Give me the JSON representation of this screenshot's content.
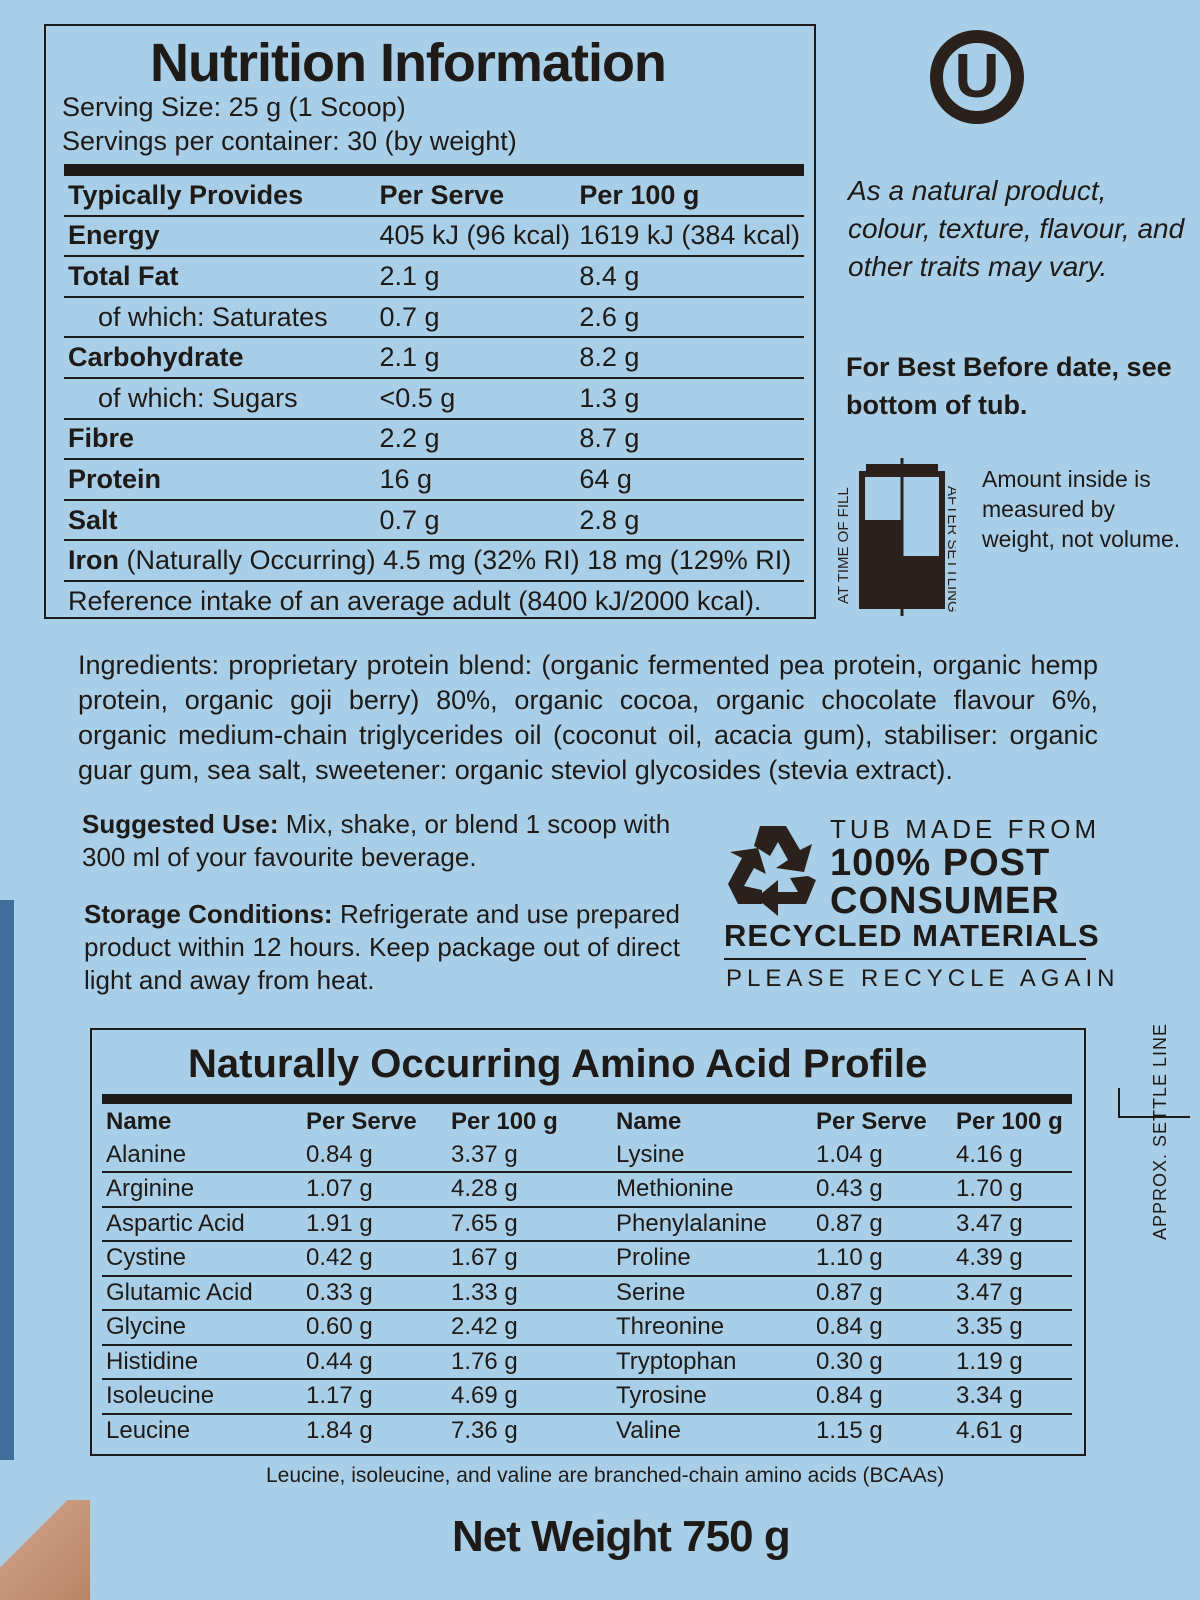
{
  "nutrition": {
    "title": "Nutrition Information",
    "serving_size": "Serving Size: 25 g (1 Scoop)",
    "servings_per_container": "Servings per container: 30 (by weight)",
    "headers": [
      "Typically Provides",
      "Per Serve",
      "Per 100 g"
    ],
    "rows": [
      {
        "name": "Energy",
        "serve": "405 kJ (96 kcal)",
        "per100": "1619 kJ (384 kcal)"
      },
      {
        "name": "Total Fat",
        "serve": "2.1 g",
        "per100": "8.4 g"
      },
      {
        "name": "of which: Saturates",
        "serve": "0.7 g",
        "per100": "2.6 g"
      },
      {
        "name": "Carbohydrate",
        "serve": "2.1 g",
        "per100": "8.2 g"
      },
      {
        "name": "of which: Sugars",
        "serve": "<0.5 g",
        "per100": "1.3 g"
      },
      {
        "name": "Fibre",
        "serve": "2.2 g",
        "per100": "8.7 g"
      },
      {
        "name": "Protein",
        "serve": "16 g",
        "per100": "64 g"
      },
      {
        "name": "Salt",
        "serve": "0.7 g",
        "per100": "2.8 g"
      }
    ],
    "iron_label": "Iron",
    "iron_note": "(Naturally Occurring)",
    "iron_values": "4.5 mg (32% RI) 18 mg (129% RI)",
    "reference": "Reference intake of an average adult (8400 kJ/2000 kcal)."
  },
  "kosher_logo": "U",
  "natural_note": "As a natural product, colour, texture, flavour, and other traits may vary.",
  "best_before": "For Best Before date, see bottom of tub.",
  "fill_icon": {
    "left_label": "AT TIME OF FILL",
    "right_label": "AFTER SETTLING"
  },
  "amount_note": "Amount inside is measured by weight, not volume.",
  "ingredients": "Ingredients: proprietary protein blend: (organic fermented pea protein, organic hemp protein, organic goji berry) 80%, organic cocoa, organic chocolate flavour 6%, organic medium-chain triglycerides oil (coconut oil, acacia gum), stabiliser: organic guar gum, sea salt, sweetener: organic steviol glycosides (stevia extract).",
  "suggested_use": {
    "label": "Suggested Use:",
    "text": "Mix, shake, or blend 1 scoop with 300 ml of your favourite beverage."
  },
  "storage": {
    "label": "Storage Conditions:",
    "text": "Refrigerate and use prepared product within 12 hours. Keep package out of direct light and away from heat."
  },
  "recycle": {
    "line1": "TUB MADE FROM",
    "line2": "100% POST",
    "line3": "CONSUMER",
    "line4": "RECYCLED MATERIALS",
    "line5": "PLEASE RECYCLE AGAIN"
  },
  "amino": {
    "title": "Naturally Occurring Amino Acid Profile",
    "headers": [
      "Name",
      "Per Serve",
      "Per 100 g",
      "Name",
      "Per Serve",
      "Per 100 g"
    ],
    "rows": [
      [
        "Alanine",
        "0.84 g",
        "3.37 g",
        "Lysine",
        "1.04 g",
        "4.16 g"
      ],
      [
        "Arginine",
        "1.07 g",
        "4.28 g",
        "Methionine",
        "0.43 g",
        "1.70 g"
      ],
      [
        "Aspartic Acid",
        "1.91 g",
        "7.65 g",
        "Phenylalanine",
        "0.87 g",
        "3.47 g"
      ],
      [
        "Cystine",
        "0.42 g",
        "1.67 g",
        "Proline",
        "1.10 g",
        "4.39 g"
      ],
      [
        "Glutamic Acid",
        "0.33 g",
        "1.33 g",
        "Serine",
        "0.87 g",
        "3.47 g"
      ],
      [
        "Glycine",
        "0.60 g",
        "2.42 g",
        "Threonine",
        "0.84 g",
        "3.35 g"
      ],
      [
        "Histidine",
        "0.44 g",
        "1.76 g",
        "Tryptophan",
        "0.30 g",
        "1.19 g"
      ],
      [
        "Isoleucine",
        "1.17 g",
        "4.69 g",
        "Tyrosine",
        "0.84 g",
        "3.34 g"
      ],
      [
        "Leucine",
        "1.84 g",
        "7.36 g",
        "Valine",
        "1.15 g",
        "4.61 g"
      ]
    ]
  },
  "bcaa_note": "Leucine, isoleucine, and valine are branched-chain amino acids (BCAAs)",
  "net_weight": "Net Weight 750 g",
  "settle_line": "APPROX. SETTLE LINE"
}
